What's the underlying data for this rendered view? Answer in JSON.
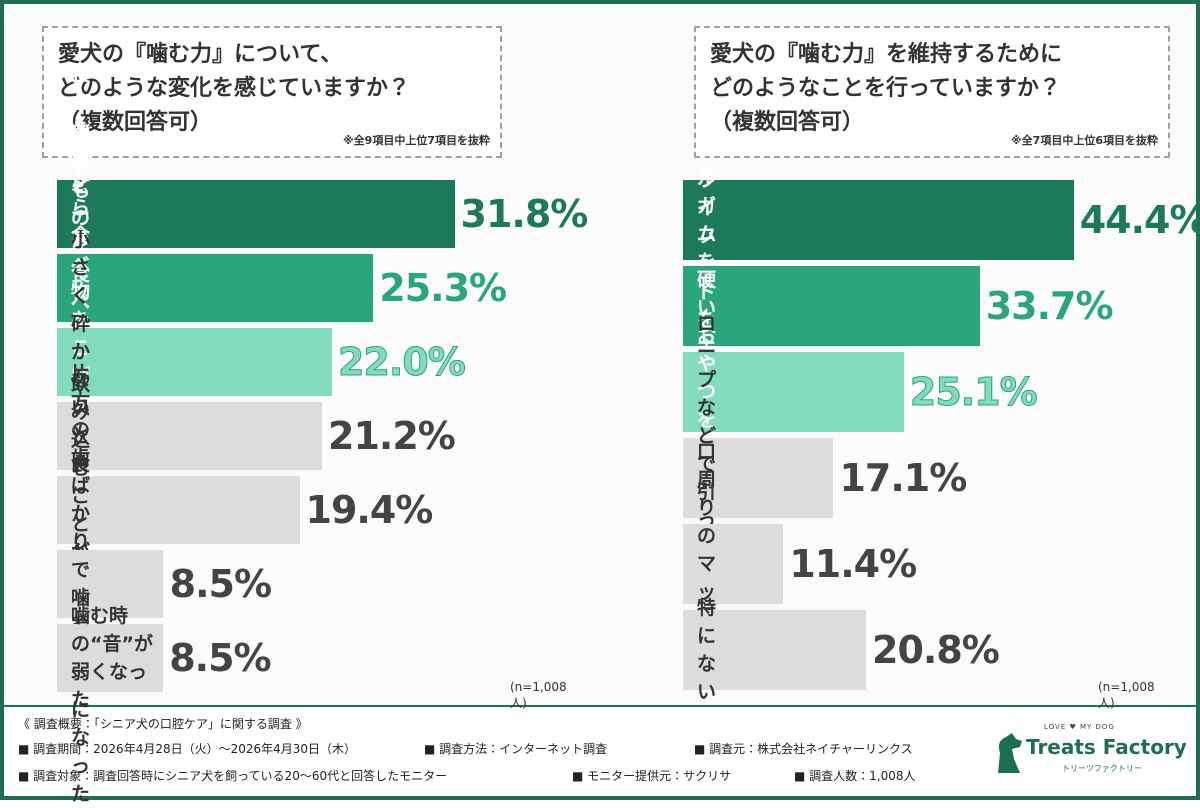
{
  "chart_data": [
    {
      "type": "bar",
      "title": "愛犬の『噛む力』について、\nどのような変化を感じていますか？\n（複数回答可）",
      "note": "※全9項目中上位7項目を抜粋",
      "sample": "(n=1,008人)",
      "categories": [
        "食べるスピードが落ちた",
        "硬いものを食べなくなった",
        "口から食べ物を\nこぼすようになった",
        "小さく砕かないと食べなくなった",
        "飲み込むことが増えた",
        "片方の歯ばかりで\n噛むようになった",
        "噛む時の“音”が弱くなった"
      ],
      "values": [
        31.8,
        25.3,
        22.0,
        21.2,
        19.4,
        8.5,
        8.5
      ],
      "value_labels": [
        "31.8%",
        "25.3%",
        "22.0%",
        "21.2%",
        "19.4%",
        "8.5%",
        "8.5%"
      ],
      "colors": [
        "#1d7a58",
        "#2aa57c",
        "#82dbbd",
        "#dcdcdc",
        "#dcdcdc",
        "#dcdcdc",
        "#dcdcdc"
      ]
    },
    {
      "type": "bar",
      "title": "愛犬の『噛む力』を維持するために\nどのようなことを行っていますか？\n（複数回答可）",
      "note": "※全7項目中上位6項目を抜粋",
      "sample": "(n=1,008人)",
      "categories": [
        "デンタルガムを与える",
        "ドライフードを主食にする",
        "硬いおやつを与える",
        "ロープなどで引っ張りっこ",
        "口周りのマッサージ",
        "特にない"
      ],
      "values": [
        44.4,
        33.7,
        25.1,
        17.1,
        11.4,
        20.8
      ],
      "value_labels": [
        "44.4%",
        "33.7%",
        "25.1%",
        "17.1%",
        "11.4%",
        "20.8%"
      ],
      "colors": [
        "#1d7a58",
        "#2aa57c",
        "#82dbbd",
        "#dcdcdc",
        "#dcdcdc",
        "#dcdcdc"
      ]
    }
  ],
  "survey": {
    "heading": "《 調査概要：「シニア犬の口腔ケア」に関する調査 》",
    "items": [
      "■ 調査期間：2026年4月28日（火）～2026年4月30日（木）",
      "■ 調査方法：インターネット調査",
      "■ 調査元：株式会社ネイチャーリンクス",
      "■ 調査対象：調査回答時にシニア犬を飼っている20～60代と回答したモニター",
      "■ モニター提供元：サクリサ",
      "■ 調査人数：1,008人"
    ]
  },
  "logo": {
    "tagline": "LOVE ♥ MY DOG",
    "name": "Treats Factory",
    "kana": "トリーツファクトリー"
  }
}
